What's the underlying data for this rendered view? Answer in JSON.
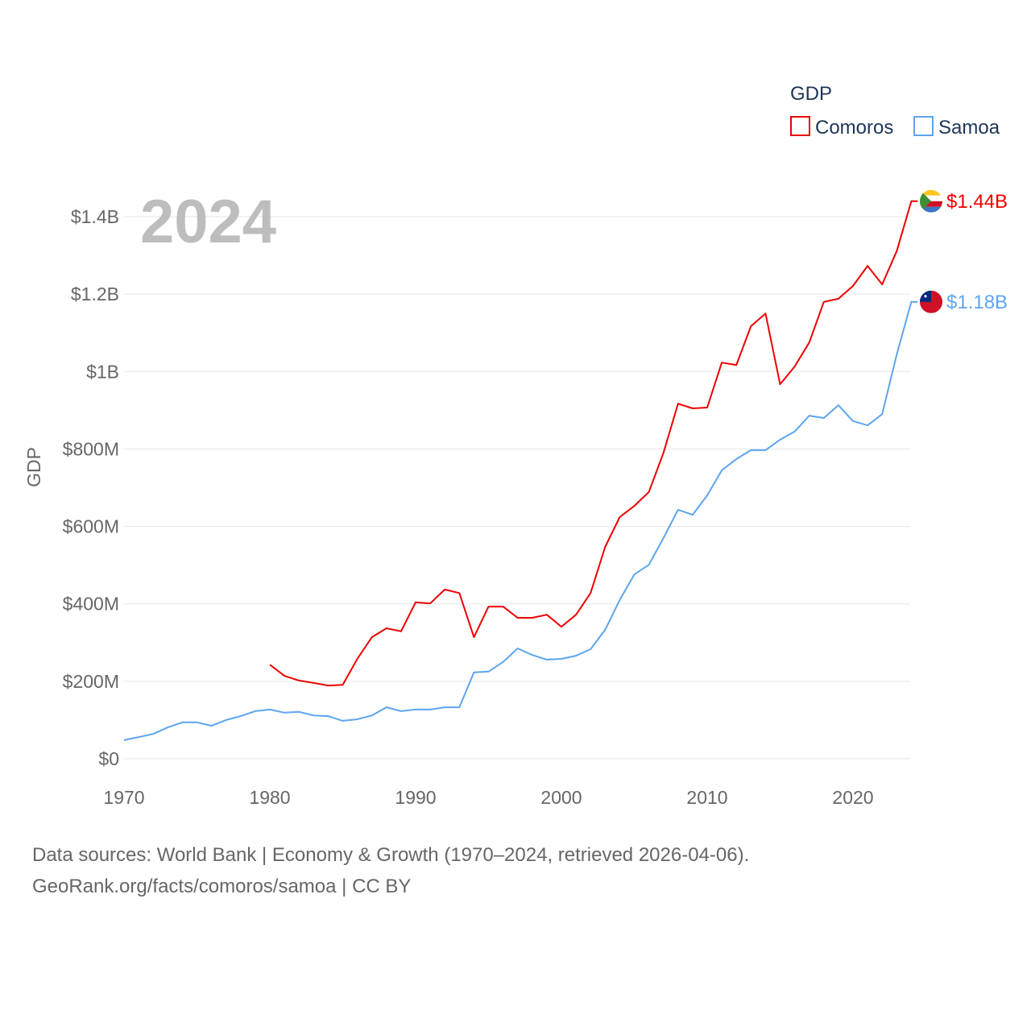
{
  "chart_data": {
    "type": "line",
    "title": "GDP",
    "year_label": "2024",
    "ylabel": "GDP",
    "xlabel": "",
    "xlim": [
      1970,
      2024
    ],
    "ylim": [
      0,
      1400
    ],
    "y_unit": "million USD",
    "x_ticks": [
      "1970",
      "1980",
      "1990",
      "2000",
      "2010",
      "2020"
    ],
    "y_ticks": [
      {
        "value": 0,
        "label": "$0"
      },
      {
        "value": 200,
        "label": "$200M"
      },
      {
        "value": 400,
        "label": "$400M"
      },
      {
        "value": 600,
        "label": "$600M"
      },
      {
        "value": 800,
        "label": "$800M"
      },
      {
        "value": 1000,
        "label": "$1B"
      },
      {
        "value": 1200,
        "label": "$1.2B"
      },
      {
        "value": 1400,
        "label": "$1.4B"
      }
    ],
    "grid": true,
    "legend_placement": "top-right",
    "series": [
      {
        "name": "Comoros",
        "color": "#ee0000",
        "end_label": "$1.44B",
        "flag_icon": "comoros-flag-icon",
        "start_year": 1980,
        "values": [
          243,
          214,
          202,
          196,
          189,
          191,
          258,
          314,
          337,
          329,
          404,
          401,
          437,
          428,
          314,
          393,
          393,
          364,
          364,
          372,
          341,
          372,
          428,
          547,
          624,
          653,
          689,
          790,
          917,
          905,
          907,
          1023,
          1017,
          1117,
          1150,
          967,
          1013,
          1075,
          1180,
          1188,
          1221,
          1273,
          1225,
          1311,
          1440
        ]
      },
      {
        "name": "Samoa",
        "color": "#5da5ef",
        "end_label": "$1.18B",
        "flag_icon": "samoa-flag-icon",
        "start_year": 1970,
        "values": [
          48,
          56,
          64,
          81,
          94,
          94,
          85,
          100,
          110,
          123,
          127,
          119,
          121,
          112,
          110,
          98,
          102,
          112,
          133,
          123,
          127,
          127,
          133,
          133,
          223,
          225,
          250,
          285,
          268,
          256,
          258,
          266,
          283,
          333,
          410,
          476,
          501,
          570,
          643,
          630,
          680,
          745,
          774,
          797,
          797,
          824,
          845,
          886,
          880,
          913,
          872,
          861,
          890,
          1044,
          1180
        ]
      }
    ]
  },
  "footer": {
    "line1": "Data sources: World Bank | Economy & Growth (1970–2024, retrieved 2026-04-06).",
    "line2": "GeoRank.org/facts/comoros/samoa | CC BY"
  }
}
